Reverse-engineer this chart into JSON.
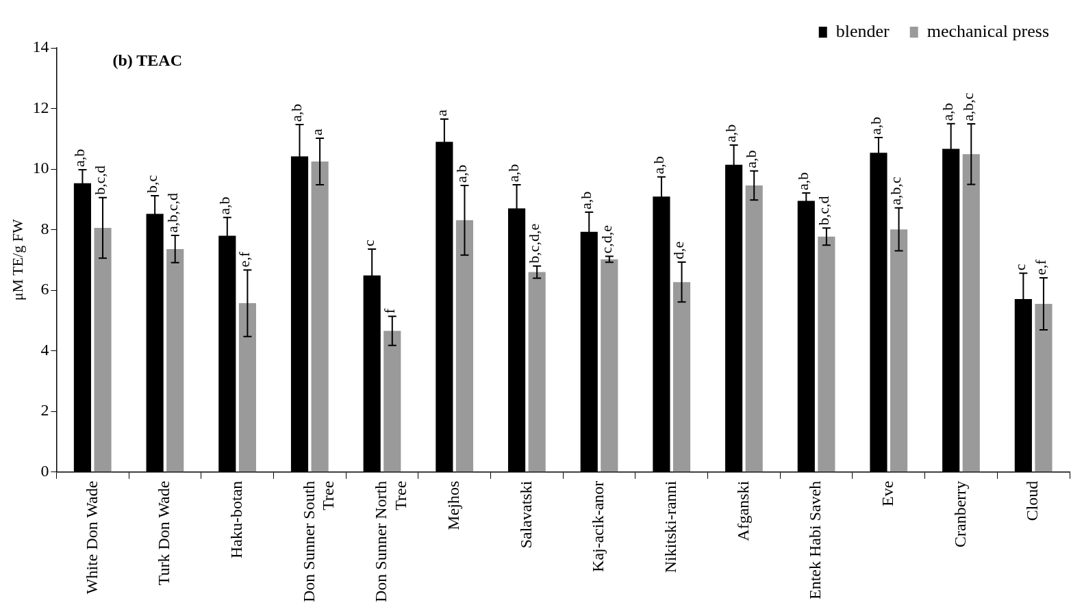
{
  "chart_data": {
    "type": "bar",
    "title": "(b) TEAC",
    "ylabel": "μM TE/g FW",
    "categories": [
      "White Don Wade",
      "Turk Don Wade",
      "Haku-botan",
      "Don Sunner South Tree",
      "Don Sunner North Tree",
      "Mejhos",
      "Salavatski",
      "Kaj-acik-anor",
      "Nikitski-ranni",
      "Afganski",
      "Entek Habi Saveh",
      "Eve",
      "Cranberry",
      "Cloud"
    ],
    "series": [
      {
        "name": "blender",
        "color": "#000000",
        "values": [
          9.53,
          8.52,
          7.8,
          10.42,
          6.49,
          10.9,
          8.7,
          7.93,
          9.09,
          10.14,
          8.95,
          10.54,
          10.67,
          5.71
        ],
        "errors": [
          0.45,
          0.6,
          0.6,
          1.05,
          0.87,
          0.75,
          0.78,
          0.65,
          0.65,
          0.65,
          0.26,
          0.5,
          0.83,
          0.85
        ],
        "value_labels": [
          "a,b",
          "b,c",
          "a,b",
          "a,b",
          "c",
          "a",
          "a,b",
          "a,b",
          "a,b",
          "a,b",
          "a,b",
          "a,b",
          "a,b",
          "c"
        ]
      },
      {
        "name": "mechanical press",
        "color": "#9a9a9a",
        "values": [
          8.06,
          7.36,
          5.57,
          10.25,
          4.66,
          8.31,
          6.6,
          7.02,
          6.27,
          9.46,
          7.77,
          8.01,
          10.49,
          5.55
        ],
        "errors": [
          1.0,
          0.45,
          1.1,
          0.77,
          0.48,
          1.15,
          0.2,
          0.1,
          0.66,
          0.48,
          0.28,
          0.71,
          1.0,
          0.86
        ],
        "value_labels": [
          "b,c,d",
          "a,b,c,d",
          "e,f",
          "a",
          "f",
          "a,b",
          "b,c,d,e",
          "c,d,e",
          "d,e",
          "a,b",
          "b,c,d",
          "a,b,c",
          "a,b,c",
          "e,f"
        ]
      }
    ],
    "ylim": [
      0,
      14
    ],
    "yticks": [
      0,
      2,
      4,
      6,
      8,
      10,
      12,
      14
    ],
    "grid": false,
    "legend": "top right"
  }
}
